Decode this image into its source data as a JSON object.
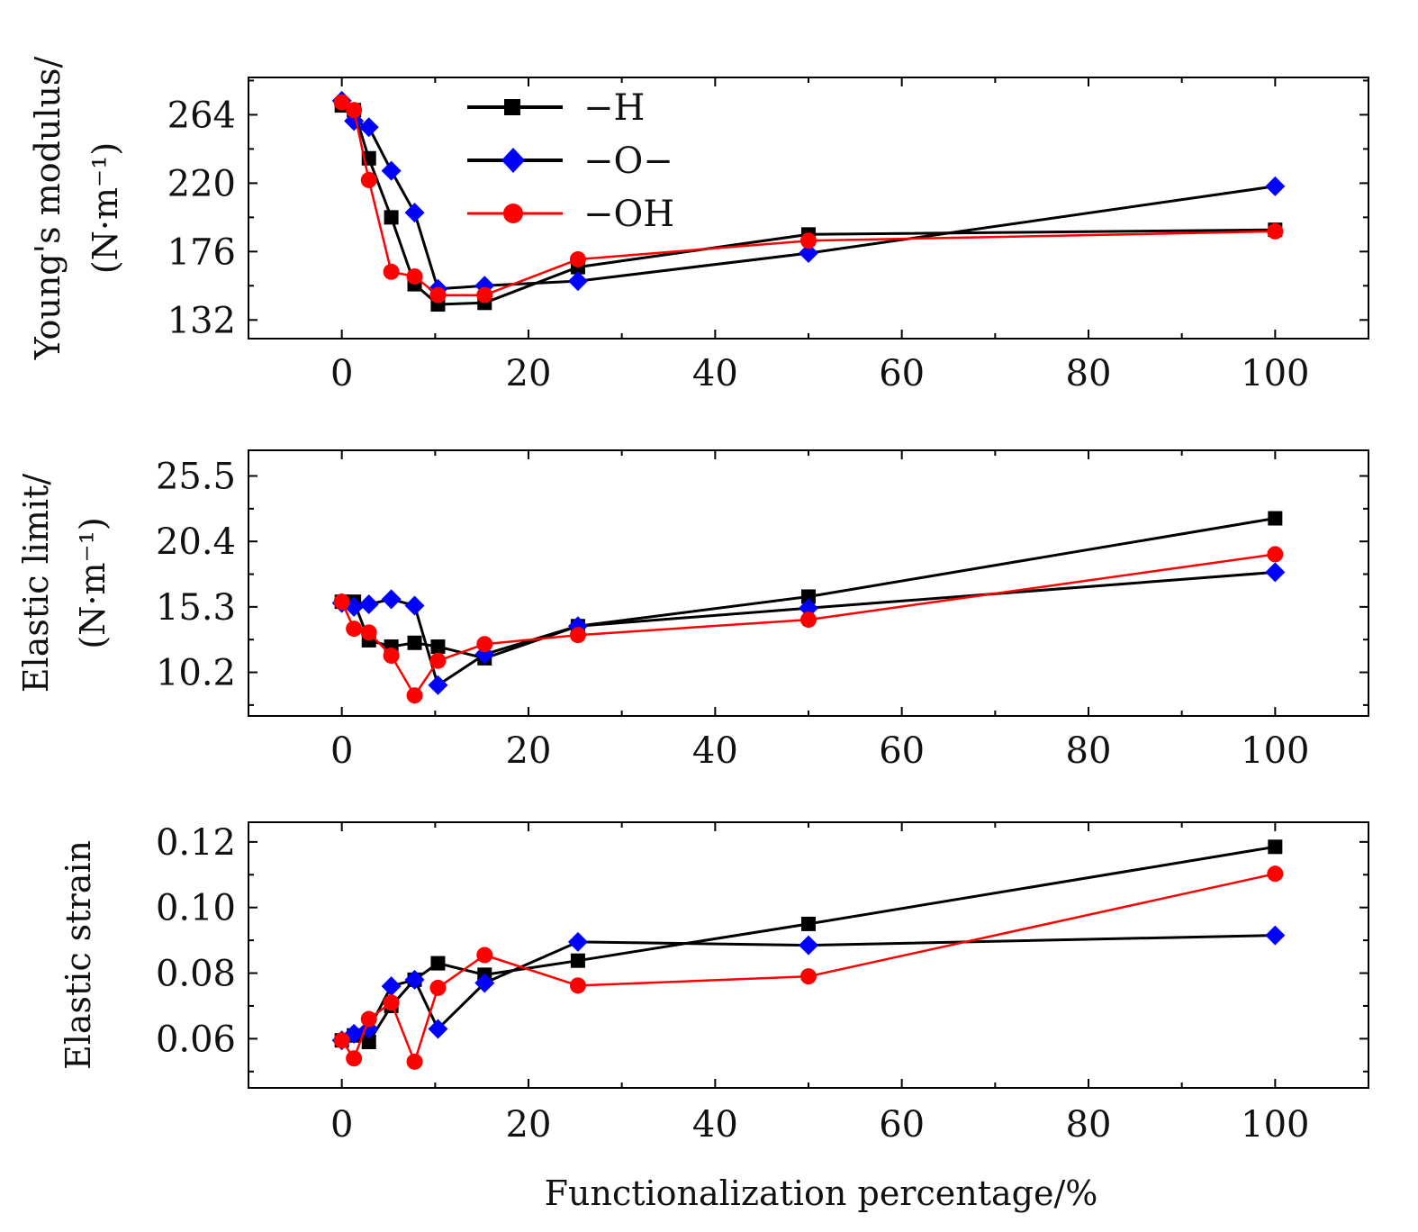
{
  "chart_data": [
    {
      "type": "line",
      "ylabel_line1": "Young's modulus/",
      "ylabel_line2": "(N·m⁻¹)",
      "xlim": [
        -10,
        110
      ],
      "ylim": [
        120,
        288
      ],
      "xticks": [
        "0",
        "20",
        "40",
        "60",
        "80",
        "100"
      ],
      "xtick_values": [
        0,
        20,
        40,
        60,
        80,
        100
      ],
      "yticks": [
        "132",
        "176",
        "220",
        "264"
      ],
      "ytick_values": [
        132,
        176,
        220,
        264
      ],
      "series": [
        {
          "name": "−H",
          "x": [
            0,
            1.3,
            2.9,
            5.3,
            7.8,
            10.3,
            15.3,
            25.3,
            50,
            100
          ],
          "y": [
            270,
            267,
            236,
            198,
            155,
            142,
            143,
            166,
            187,
            190
          ]
        },
        {
          "name": "−O−",
          "x": [
            0,
            1.3,
            2.9,
            5.3,
            7.8,
            10.3,
            15.3,
            25.3,
            50,
            100
          ],
          "y": [
            273,
            260,
            256,
            228,
            201,
            152,
            154,
            157,
            175,
            218
          ]
        },
        {
          "name": "−OH",
          "x": [
            0,
            1.3,
            2.9,
            5.3,
            7.8,
            10.3,
            15.3,
            25.3,
            50,
            100
          ],
          "y": [
            272,
            267,
            222,
            163,
            160,
            148,
            148,
            171,
            183,
            189
          ]
        }
      ]
    },
    {
      "type": "line",
      "ylabel_line1": "Elastic limit/",
      "ylabel_line2": "(N·m⁻¹)",
      "xlim": [
        -10,
        110
      ],
      "ylim": [
        6.8,
        27.5
      ],
      "xticks": [
        "0",
        "20",
        "40",
        "60",
        "80",
        "100"
      ],
      "xtick_values": [
        0,
        20,
        40,
        60,
        80,
        100
      ],
      "yticks": [
        "10.2",
        "15.3",
        "20.4",
        "25.5"
      ],
      "ytick_values": [
        10.2,
        15.3,
        20.4,
        25.5
      ],
      "series": [
        {
          "name": "−H",
          "x": [
            0,
            1.3,
            2.9,
            5.3,
            7.8,
            10.3,
            15.3,
            25.3,
            50,
            100
          ],
          "y": [
            15.7,
            15.7,
            12.7,
            12.2,
            12.5,
            12.2,
            11.3,
            13.8,
            16.1,
            22.2
          ]
        },
        {
          "name": "−O−",
          "x": [
            0,
            1.3,
            2.9,
            5.3,
            7.8,
            10.3,
            15.3,
            25.3,
            50,
            100
          ],
          "y": [
            15.6,
            15.3,
            15.5,
            15.9,
            15.4,
            9.2,
            11.6,
            13.8,
            15.2,
            18.0
          ]
        },
        {
          "name": "−OH",
          "x": [
            0,
            1.3,
            2.9,
            5.3,
            7.8,
            10.3,
            15.3,
            25.3,
            50,
            100
          ],
          "y": [
            15.7,
            13.6,
            13.3,
            11.5,
            8.4,
            11.1,
            12.4,
            13.1,
            14.3,
            19.4
          ]
        }
      ]
    },
    {
      "type": "line",
      "ylabel_line1": "Elastic strain",
      "ylabel_line2": "",
      "xlim": [
        -10,
        110
      ],
      "ylim": [
        0.045,
        0.126
      ],
      "xticks": [
        "0",
        "20",
        "40",
        "60",
        "80",
        "100"
      ],
      "xtick_values": [
        0,
        20,
        40,
        60,
        80,
        100
      ],
      "yticks": [
        "0.06",
        "0.08",
        "0.10",
        "0.12"
      ],
      "ytick_values": [
        0.06,
        0.08,
        0.1,
        0.12
      ],
      "series": [
        {
          "name": "−H",
          "x": [
            0,
            1.3,
            2.9,
            5.3,
            7.8,
            10.3,
            15.3,
            25.3,
            50,
            100
          ],
          "y": [
            0.0595,
            0.061,
            0.059,
            0.07,
            0.078,
            0.083,
            0.0795,
            0.0838,
            0.095,
            0.1185
          ]
        },
        {
          "name": "−O−",
          "x": [
            0,
            1.3,
            2.9,
            5.3,
            7.8,
            10.3,
            15.3,
            25.3,
            50,
            100
          ],
          "y": [
            0.0595,
            0.0615,
            0.063,
            0.076,
            0.078,
            0.063,
            0.077,
            0.0895,
            0.0885,
            0.0915
          ]
        },
        {
          "name": "−OH",
          "x": [
            0,
            1.3,
            2.9,
            5.3,
            7.8,
            10.3,
            15.3,
            25.3,
            50,
            100
          ],
          "y": [
            0.0595,
            0.054,
            0.066,
            0.071,
            0.053,
            0.0755,
            0.0855,
            0.0762,
            0.079,
            0.1103
          ]
        }
      ]
    }
  ],
  "xlabel": "Functionalization percentage/%",
  "legend": [
    {
      "label": "−H",
      "color": "#000000",
      "marker": "square"
    },
    {
      "label": "−O−",
      "color": "#0000ff",
      "marker": "diamond"
    },
    {
      "label": "−OH",
      "color": "#ff0000",
      "marker": "circle"
    }
  ],
  "colors": {
    "H": "#000000",
    "O": "#0000ff",
    "OH": "#ff0000"
  }
}
